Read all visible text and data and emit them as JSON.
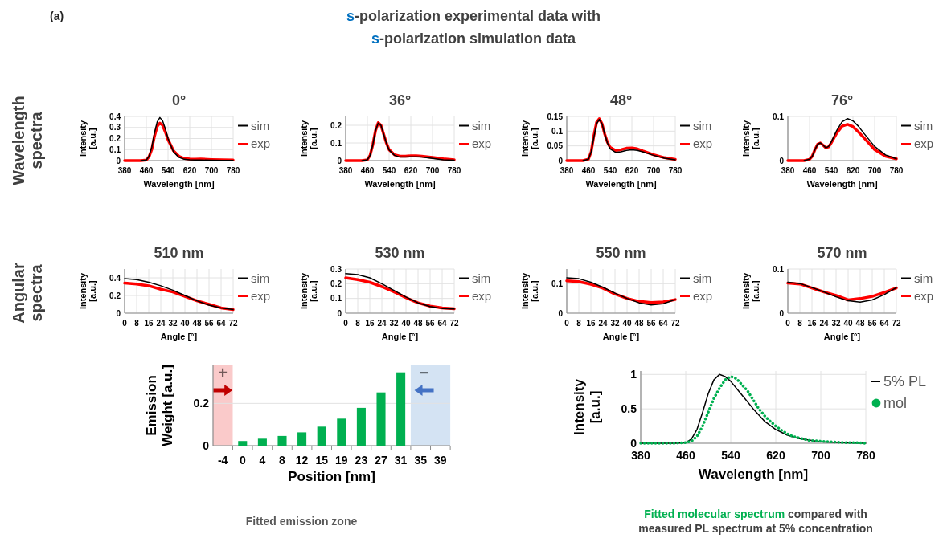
{
  "chart_data": [
    {
      "type": "line",
      "title": "0°",
      "xlabel": "Wavelength [nm]",
      "ylabel": "Intensity [a.u.]",
      "xlim": [
        380,
        780
      ],
      "xticks": [
        380,
        460,
        540,
        620,
        700,
        780
      ],
      "ylim": [
        0,
        0.4
      ],
      "yticks": [
        0,
        0.1,
        0.2,
        0.3,
        0.4
      ],
      "grid": true,
      "legend": "right",
      "annotations": [
        "(a)",
        "s-polarization experimental data with",
        "s-polarization simulation data",
        "Wavelength spectra"
      ],
      "x": [
        380,
        440,
        460,
        470,
        480,
        490,
        500,
        510,
        520,
        530,
        540,
        560,
        580,
        600,
        620,
        640,
        660,
        700,
        740,
        780
      ],
      "series": [
        {
          "name": "sim",
          "color": "#000000",
          "values": [
            null,
            0,
            0.005,
            0.04,
            0.12,
            0.25,
            0.35,
            0.39,
            0.36,
            0.29,
            0.2,
            0.08,
            0.03,
            0.012,
            0.008,
            0.006,
            0.005,
            0.004,
            0.002,
            0.001
          ]
        },
        {
          "name": "exp",
          "color": "#ff0000",
          "values": [
            0,
            0,
            0.005,
            0.035,
            0.1,
            0.22,
            0.31,
            0.34,
            0.32,
            0.26,
            0.19,
            0.09,
            0.04,
            0.02,
            0.015,
            0.013,
            0.014,
            0.01,
            0.008,
            0.005
          ]
        }
      ]
    },
    {
      "type": "line",
      "title": "36°",
      "xlabel": "Wavelength [nm]",
      "ylabel": "Intensity [a.u.]",
      "xlim": [
        380,
        780
      ],
      "xticks": [
        380,
        460,
        540,
        620,
        700,
        780
      ],
      "ylim": [
        0,
        0.25
      ],
      "yticks": [
        0,
        0.1,
        0.2
      ],
      "grid": true,
      "legend": "right",
      "x": [
        380,
        440,
        460,
        470,
        480,
        490,
        500,
        510,
        520,
        530,
        540,
        560,
        580,
        600,
        620,
        640,
        660,
        700,
        740,
        780
      ],
      "series": [
        {
          "name": "sim",
          "color": "#000000",
          "values": [
            null,
            0,
            0.005,
            0.03,
            0.09,
            0.17,
            0.212,
            0.2,
            0.15,
            0.1,
            0.06,
            0.03,
            0.02,
            0.02,
            0.022,
            0.022,
            0.02,
            0.012,
            0.005,
            0.002
          ]
        },
        {
          "name": "exp",
          "color": "#ff0000",
          "values": [
            0,
            0,
            0.005,
            0.03,
            0.09,
            0.17,
            0.215,
            0.2,
            0.15,
            0.1,
            0.062,
            0.033,
            0.025,
            0.025,
            0.027,
            0.027,
            0.025,
            0.018,
            0.01,
            0.005
          ]
        }
      ]
    },
    {
      "type": "line",
      "title": "48°",
      "xlabel": "Wavelength [nm]",
      "ylabel": "Intensity [a.u.]",
      "xlim": [
        380,
        780
      ],
      "xticks": [
        380,
        460,
        540,
        620,
        700,
        780
      ],
      "ylim": [
        0,
        0.15
      ],
      "yticks": [
        0,
        0.05,
        0.1,
        0.15
      ],
      "grid": true,
      "legend": "right",
      "x": [
        380,
        440,
        460,
        470,
        480,
        490,
        500,
        510,
        520,
        530,
        540,
        560,
        580,
        600,
        620,
        640,
        660,
        700,
        740,
        780
      ],
      "series": [
        {
          "name": "sim",
          "color": "#000000",
          "values": [
            null,
            0,
            0.005,
            0.03,
            0.08,
            0.125,
            0.14,
            0.125,
            0.09,
            0.06,
            0.04,
            0.028,
            0.03,
            0.035,
            0.037,
            0.035,
            0.03,
            0.018,
            0.008,
            0.003
          ]
        },
        {
          "name": "exp",
          "color": "#ff0000",
          "values": [
            0,
            0,
            0.005,
            0.03,
            0.085,
            0.13,
            0.142,
            0.125,
            0.09,
            0.062,
            0.045,
            0.035,
            0.037,
            0.042,
            0.043,
            0.04,
            0.033,
            0.02,
            0.01,
            0.004
          ]
        }
      ]
    },
    {
      "type": "line",
      "title": "76°",
      "xlabel": "Wavelength [nm]",
      "ylabel": "Intensity [a.u.]",
      "xlim": [
        380,
        780
      ],
      "xticks": [
        380,
        460,
        540,
        620,
        700,
        780
      ],
      "ylim": [
        0,
        0.1
      ],
      "yticks": [
        0,
        0.1
      ],
      "grid": true,
      "legend": "right",
      "x": [
        380,
        440,
        460,
        470,
        480,
        490,
        500,
        510,
        520,
        530,
        540,
        560,
        580,
        600,
        620,
        640,
        660,
        700,
        740,
        780
      ],
      "series": [
        {
          "name": "sim",
          "color": "#000000",
          "values": [
            null,
            0,
            0.003,
            0.01,
            0.025,
            0.037,
            0.04,
            0.035,
            0.029,
            0.032,
            0.042,
            0.068,
            0.088,
            0.095,
            0.09,
            0.078,
            0.062,
            0.032,
            0.013,
            0.004
          ]
        },
        {
          "name": "exp",
          "color": "#ff0000",
          "values": [
            0,
            0,
            0.003,
            0.01,
            0.025,
            0.037,
            0.04,
            0.035,
            0.029,
            0.031,
            0.04,
            0.062,
            0.078,
            0.082,
            0.077,
            0.065,
            0.052,
            0.025,
            0.01,
            0.004
          ]
        }
      ]
    },
    {
      "type": "line",
      "title": "510 nm",
      "xlabel": "Angle [°]",
      "ylabel": "Intensity [a.u.]",
      "xlim": [
        0,
        72
      ],
      "xticks": [
        0,
        8,
        16,
        24,
        32,
        40,
        48,
        56,
        64,
        72
      ],
      "ylim": [
        0,
        0.5
      ],
      "yticks": [
        0,
        0.2,
        0.4
      ],
      "grid": true,
      "legend": "right",
      "annotations": [
        "Angular spectra"
      ],
      "x": [
        0,
        8,
        16,
        24,
        32,
        40,
        48,
        56,
        64,
        72
      ],
      "series": [
        {
          "name": "sim",
          "color": "#000000",
          "values": [
            0.39,
            0.38,
            0.35,
            0.31,
            0.26,
            0.2,
            0.14,
            0.09,
            0.06,
            0.04
          ]
        },
        {
          "name": "exp",
          "color": "#ff0000",
          "values": [
            0.34,
            0.33,
            0.31,
            0.27,
            0.24,
            0.19,
            0.14,
            0.1,
            0.06,
            0.04
          ]
        }
      ]
    },
    {
      "type": "line",
      "title": "530 nm",
      "xlabel": "Angle [°]",
      "ylabel": "Intensity [a.u.]",
      "xlim": [
        0,
        72
      ],
      "xticks": [
        0,
        8,
        16,
        24,
        32,
        40,
        48,
        56,
        64,
        72
      ],
      "ylim": [
        0,
        0.3
      ],
      "yticks": [
        0,
        0.1,
        0.2,
        0.3
      ],
      "grid": true,
      "legend": "right",
      "x": [
        0,
        8,
        16,
        24,
        32,
        40,
        48,
        56,
        64,
        72
      ],
      "series": [
        {
          "name": "sim",
          "color": "#000000",
          "values": [
            0.268,
            0.262,
            0.24,
            0.2,
            0.155,
            0.11,
            0.07,
            0.045,
            0.032,
            0.028
          ]
        },
        {
          "name": "exp",
          "color": "#ff0000",
          "values": [
            0.24,
            0.228,
            0.21,
            0.18,
            0.145,
            0.105,
            0.07,
            0.048,
            0.036,
            0.03
          ]
        }
      ]
    },
    {
      "type": "line",
      "title": "550 nm",
      "xlabel": "Angle [°]",
      "ylabel": "Intensity [a.u.]",
      "xlim": [
        0,
        72
      ],
      "xticks": [
        0,
        8,
        16,
        24,
        32,
        40,
        48,
        56,
        64,
        72
      ],
      "ylim": [
        0,
        0.15
      ],
      "yticks": [
        0,
        0.1
      ],
      "grid": true,
      "legend": "right",
      "x": [
        0,
        8,
        16,
        24,
        32,
        40,
        48,
        56,
        64,
        72
      ],
      "series": [
        {
          "name": "sim",
          "color": "#000000",
          "values": [
            0.12,
            0.117,
            0.105,
            0.088,
            0.068,
            0.05,
            0.035,
            0.028,
            0.032,
            0.046
          ]
        },
        {
          "name": "exp",
          "color": "#ff0000",
          "values": [
            0.11,
            0.107,
            0.098,
            0.085,
            0.065,
            0.05,
            0.04,
            0.036,
            0.038,
            0.046
          ]
        }
      ]
    },
    {
      "type": "line",
      "title": "570 nm",
      "xlabel": "Angle [°]",
      "ylabel": "Intensity [a.u.]",
      "xlim": [
        0,
        72
      ],
      "xticks": [
        0,
        8,
        16,
        24,
        32,
        40,
        48,
        56,
        64,
        72
      ],
      "ylim": [
        0,
        0.1
      ],
      "yticks": [
        0,
        0.1
      ],
      "grid": true,
      "legend": "right",
      "x": [
        0,
        8,
        16,
        24,
        32,
        40,
        48,
        56,
        64,
        72
      ],
      "series": [
        {
          "name": "sim",
          "color": "#000000",
          "values": [
            0.07,
            0.067,
            0.058,
            0.048,
            0.037,
            0.028,
            0.025,
            0.03,
            0.042,
            0.058
          ]
        },
        {
          "name": "exp",
          "color": "#ff0000",
          "values": [
            0.068,
            0.066,
            0.057,
            0.048,
            0.04,
            0.03,
            0.033,
            0.038,
            0.047,
            0.057
          ]
        }
      ]
    },
    {
      "type": "bar",
      "xlabel": "Position [nm]",
      "ylabel": "Emission Weight [a.u.]",
      "categories": [
        "-4",
        "0",
        "4",
        "8",
        "12",
        "15",
        "19",
        "23",
        "27",
        "31",
        "35",
        "39"
      ],
      "ylim": [
        0,
        0.38
      ],
      "yticks": [
        0,
        0.2
      ],
      "grid": "y",
      "annotations": [
        "Fitted emission zone"
      ],
      "bands": [
        {
          "axis": "x",
          "from": "-4",
          "to": "-4",
          "label": "+",
          "color": "#f9c4c4"
        },
        {
          "axis": "x",
          "from": "35",
          "to": "39",
          "label": "−",
          "color": "#cfe0f2"
        }
      ],
      "series": [
        {
          "color": "#00b050",
          "values": [
            null,
            0.022,
            0.033,
            0.046,
            0.063,
            0.09,
            0.128,
            0.179,
            0.252,
            0.347,
            null,
            null
          ]
        }
      ]
    },
    {
      "type": "line",
      "xlabel": "Wavelength [nm]",
      "ylabel": "Intensity [a.u.]",
      "xlim": [
        380,
        780
      ],
      "xticks": [
        380,
        460,
        540,
        620,
        700,
        780
      ],
      "ylim": [
        0,
        1.05
      ],
      "yticks": [
        0,
        0.5,
        1
      ],
      "grid": true,
      "legend": "right",
      "annotations": [
        "Fitted molecular spectrum",
        "compared with",
        "measured PL spectrum at 5% concentration"
      ],
      "series": [
        {
          "name": "5% PL",
          "color": "#000000",
          "x": [
            380,
            440,
            460,
            470,
            480,
            490,
            500,
            510,
            520,
            530,
            540,
            560,
            580,
            600,
            620,
            640,
            660,
            700,
            740,
            780
          ],
          "values": [
            0,
            0,
            0.01,
            0.06,
            0.2,
            0.45,
            0.72,
            0.92,
            1.0,
            0.97,
            0.9,
            0.7,
            0.5,
            0.32,
            0.2,
            0.12,
            0.07,
            0.02,
            0.01,
            0
          ]
        },
        {
          "name": "mol",
          "color": "#00b050",
          "line_style": "dotted",
          "x": [
            380,
            400,
            420,
            440,
            460,
            470,
            480,
            490,
            500,
            510,
            520,
            530,
            540,
            550,
            560,
            570,
            580,
            590,
            600,
            610,
            620,
            630,
            640,
            650,
            660,
            680,
            700,
            720,
            740,
            760,
            780
          ],
          "values": [
            0,
            0,
            0,
            0,
            0.01,
            0.03,
            0.1,
            0.25,
            0.45,
            0.65,
            0.8,
            0.92,
            0.97,
            0.94,
            0.85,
            0.76,
            0.63,
            0.5,
            0.4,
            0.32,
            0.25,
            0.19,
            0.14,
            0.1,
            0.08,
            0.04,
            0.03,
            0.02,
            0.01,
            0.01,
            0
          ]
        }
      ]
    }
  ]
}
